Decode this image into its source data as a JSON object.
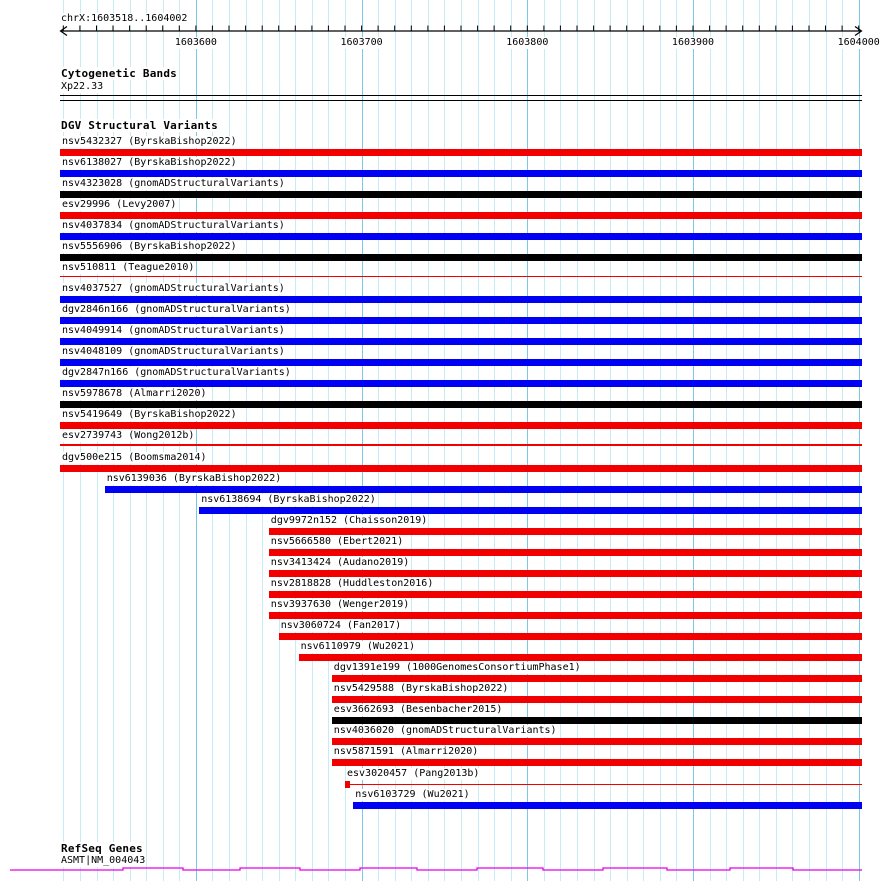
{
  "ruler": {
    "region_label": "chrX:1603518..1604002"
  },
  "cytobands": {
    "title": "Cytogenetic Bands",
    "band_label": "Xp22.33"
  },
  "variants": {
    "title": "DGV Structural Variants"
  },
  "genes": {
    "title": "RefSeq Genes",
    "gene_label": "ASMT|NM_004043"
  },
  "colors": {
    "red": "#f20000",
    "blue": "#0000f2",
    "black": "#000000",
    "magenta": "#e800e8",
    "grid_minor": "#c7ecf5",
    "grid_major": "#7bc9e8",
    "axis": "#000000"
  },
  "chart_data": {
    "type": "bar",
    "orientation": "horizontal-genomic-intervals",
    "title": "DGV Structural Variants",
    "chrom": "chrX",
    "xlim": [
      1603518,
      1604002
    ],
    "x_ticks": [
      1603600,
      1603700,
      1603800,
      1603900,
      1604000
    ],
    "x_tick_labels": [
      "1603600",
      "1603700",
      "1603800",
      "1603900",
      "1604000"
    ],
    "minor_tick_step_bp": 10,
    "grid": true,
    "legend": false,
    "tracks": [
      {
        "label": "nsv5432327 (ByrskaBishop2022)",
        "color": "red",
        "glyph": "bar",
        "start": 1603518,
        "end": 1604002
      },
      {
        "label": "nsv6138027 (ByrskaBishop2022)",
        "color": "blue",
        "glyph": "bar",
        "start": 1603518,
        "end": 1604002
      },
      {
        "label": "nsv4323028 (gnomADStructuralVariants)",
        "color": "black",
        "glyph": "bar",
        "start": 1603518,
        "end": 1604002
      },
      {
        "label": "esv29996 (Levy2007)",
        "color": "red",
        "glyph": "bar",
        "start": 1603518,
        "end": 1604002
      },
      {
        "label": "nsv4037834 (gnomADStructuralVariants)",
        "color": "blue",
        "glyph": "bar",
        "start": 1603518,
        "end": 1604002
      },
      {
        "label": "nsv5556906 (ByrskaBishop2022)",
        "color": "black",
        "glyph": "bar",
        "start": 1603518,
        "end": 1604002
      },
      {
        "label": "nsv510811 (Teague2010)",
        "color": "red",
        "glyph": "line",
        "start": 1603518,
        "end": 1604002
      },
      {
        "label": "nsv4037527 (gnomADStructuralVariants)",
        "color": "blue",
        "glyph": "bar",
        "start": 1603518,
        "end": 1604002
      },
      {
        "label": "dgv2846n166 (gnomADStructuralVariants)",
        "color": "blue",
        "glyph": "bar",
        "start": 1603518,
        "end": 1604002
      },
      {
        "label": "nsv4049914 (gnomADStructuralVariants)",
        "color": "blue",
        "glyph": "bar",
        "start": 1603518,
        "end": 1604002
      },
      {
        "label": "nsv4048109 (gnomADStructuralVariants)",
        "color": "blue",
        "glyph": "bar",
        "start": 1603518,
        "end": 1604002
      },
      {
        "label": "dgv2847n166 (gnomADStructuralVariants)",
        "color": "blue",
        "glyph": "bar",
        "start": 1603518,
        "end": 1604002
      },
      {
        "label": "nsv5978678 (Almarri2020)",
        "color": "black",
        "glyph": "bar",
        "start": 1603518,
        "end": 1604002
      },
      {
        "label": "nsv5419649 (ByrskaBishop2022)",
        "color": "red",
        "glyph": "bar",
        "start": 1603518,
        "end": 1604002
      },
      {
        "label": "esv2739743 (Wong2012b)",
        "color": "red",
        "glyph": "line",
        "start": 1603518,
        "end": 1604002
      },
      {
        "label": "dgv500e215 (Boomsma2014)",
        "color": "red",
        "glyph": "bar",
        "start": 1603518,
        "end": 1604002
      },
      {
        "label": "nsv6139036 (ByrskaBishop2022)",
        "color": "blue",
        "glyph": "bar",
        "start": 1603545,
        "end": 1604002
      },
      {
        "label": "nsv6138694 (ByrskaBishop2022)",
        "color": "blue",
        "glyph": "bar",
        "start": 1603602,
        "end": 1604002
      },
      {
        "label": "dgv9972n152 (Chaisson2019)",
        "color": "red",
        "glyph": "bar",
        "start": 1603644,
        "end": 1604002
      },
      {
        "label": "nsv5666580 (Ebert2021)",
        "color": "red",
        "glyph": "bar",
        "start": 1603644,
        "end": 1604002
      },
      {
        "label": "nsv3413424 (Audano2019)",
        "color": "red",
        "glyph": "bar",
        "start": 1603644,
        "end": 1604002
      },
      {
        "label": "nsv2818828 (Huddleston2016)",
        "color": "red",
        "glyph": "bar",
        "start": 1603644,
        "end": 1604002
      },
      {
        "label": "nsv3937630 (Wenger2019)",
        "color": "red",
        "glyph": "bar",
        "start": 1603644,
        "end": 1604002
      },
      {
        "label": "nsv3060724 (Fan2017)",
        "color": "red",
        "glyph": "bar",
        "start": 1603650,
        "end": 1604002
      },
      {
        "label": "nsv6110979 (Wu2021)",
        "color": "red",
        "glyph": "bar",
        "start": 1603662,
        "end": 1604002
      },
      {
        "label": "dgv1391e199 (1000GenomesConsortiumPhase1)",
        "color": "red",
        "glyph": "bar",
        "start": 1603682,
        "end": 1604002
      },
      {
        "label": "nsv5429588 (ByrskaBishop2022)",
        "color": "red",
        "glyph": "bar",
        "start": 1603682,
        "end": 1604002
      },
      {
        "label": "esv3662693 (Besenbacher2015)",
        "color": "black",
        "glyph": "bar",
        "start": 1603682,
        "end": 1604002
      },
      {
        "label": "nsv4036020 (gnomADStructuralVariants)",
        "color": "red",
        "glyph": "bar",
        "start": 1603682,
        "end": 1604002
      },
      {
        "label": "nsv5871591 (Almarri2020)",
        "color": "red",
        "glyph": "bar",
        "start": 1603682,
        "end": 1604002
      },
      {
        "label": "esv3020457 (Pang2013b)",
        "color": "red",
        "glyph": "point-line",
        "start": 1603690,
        "end": 1604002
      },
      {
        "label": "nsv6103729 (Wu2021)",
        "color": "blue",
        "glyph": "bar",
        "start": 1603695,
        "end": 1604002
      }
    ]
  }
}
